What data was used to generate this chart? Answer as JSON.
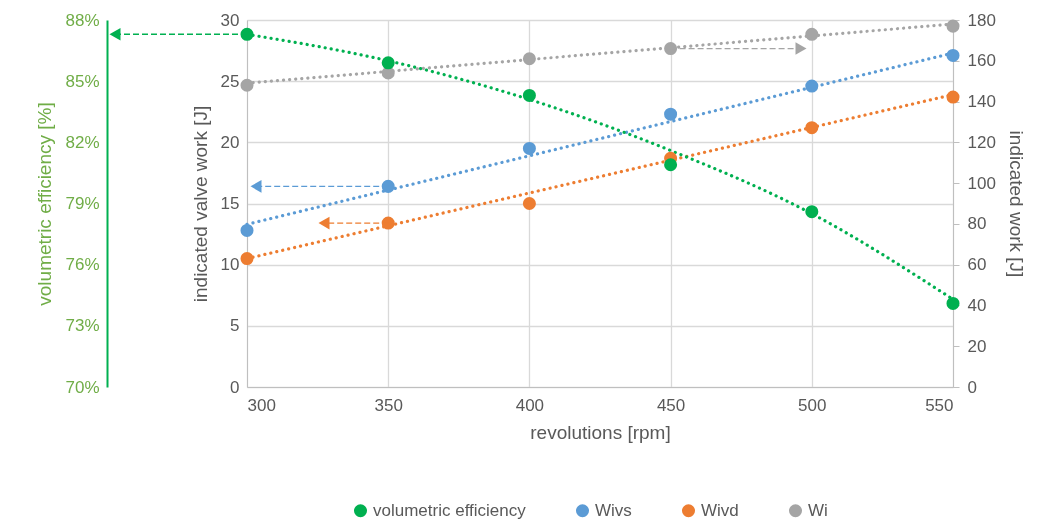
{
  "chart_data": {
    "type": "scatter",
    "xlabel": "revolutions [rpm]",
    "ylabel": "indicated valve work [J]",
    "y2label": "indicated work [J]",
    "y3label": "volumetric efficiency [%]",
    "x": [
      300,
      350,
      400,
      450,
      500,
      550
    ],
    "series": [
      {
        "name": "volumetric efficiency",
        "color": "#00b050",
        "axis": "y3",
        "values": [
          87.3,
          85.9,
          84.3,
          80.9,
          78.6,
          74.1
        ]
      },
      {
        "name": "Wivs",
        "color": "#5b9bd5",
        "axis": "y",
        "values": [
          12.8,
          16.4,
          19.5,
          22.3,
          24.6,
          27.1
        ]
      },
      {
        "name": "Wivd",
        "color": "#ed7d31",
        "axis": "y",
        "values": [
          10.5,
          13.4,
          15.0,
          18.7,
          21.2,
          23.7
        ]
      },
      {
        "name": "Wi",
        "color": "#a5a5a5",
        "axis": "y2",
        "values": [
          148,
          154,
          161,
          166,
          173,
          177
        ]
      },
      {
        "type": "line",
        "marker": "none",
        "color": "#a5a5a5",
        "axis": "y2",
        "x": [
          300,
          550
        ],
        "values": [
          149,
          178
        ]
      },
      {
        "type": "line",
        "marker": "none",
        "color": "#ed7d31",
        "axis": "y",
        "x": [
          300,
          550
        ],
        "values": [
          10.5,
          23.9
        ]
      },
      {
        "type": "line",
        "marker": "none",
        "color": "#5b9bd5",
        "axis": "y",
        "x": [
          300,
          550
        ],
        "values": [
          13.3,
          27.3
        ]
      },
      {
        "type": "line",
        "marker": "none",
        "color": "#00b050",
        "axis": "y3",
        "x": [
          300,
          350,
          400,
          450,
          500,
          550
        ],
        "values": [
          87.3,
          86.0,
          84.1,
          81.6,
          78.5,
          74.3
        ]
      }
    ],
    "xlim": [
      300,
      550
    ],
    "xticks": [
      300,
      350,
      400,
      450,
      500,
      550
    ],
    "ylim": [
      0,
      30
    ],
    "yticks": [
      0,
      5,
      10,
      15,
      20,
      25,
      30
    ],
    "y2lim": [
      0,
      180
    ],
    "y2ticks": [
      0,
      20,
      40,
      60,
      80,
      100,
      120,
      140,
      160,
      180
    ],
    "y3lim": [
      70,
      88
    ],
    "y3ticks": [
      {
        "value": 70,
        "label": "70%"
      },
      {
        "value": 73,
        "label": "73%"
      },
      {
        "value": 76,
        "label": "76%"
      },
      {
        "value": 79,
        "label": "79%"
      },
      {
        "value": 82,
        "label": "82%"
      },
      {
        "value": 85,
        "label": "85%"
      },
      {
        "value": 88,
        "label": "88%"
      }
    ],
    "grid": true,
    "legend": "bottom",
    "marker": "circle",
    "line_style": "dotted"
  }
}
